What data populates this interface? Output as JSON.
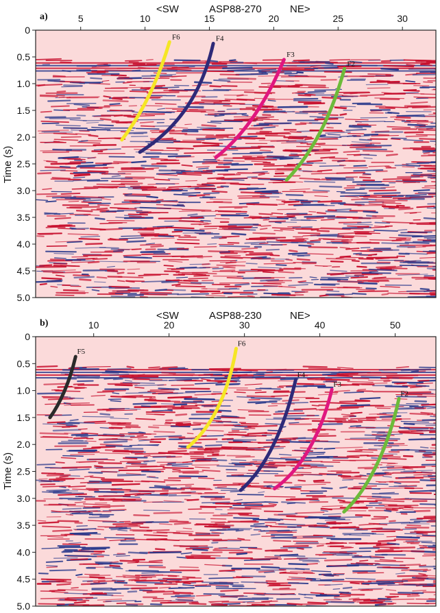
{
  "figure": {
    "panels": [
      {
        "id": "a",
        "tag": "a)",
        "title": "ASP88-270",
        "direction_left": "<SW",
        "direction_right": "NE>",
        "x_ticks": [
          {
            "value": 5,
            "label": "5"
          },
          {
            "value": 10,
            "label": "10"
          },
          {
            "value": 15,
            "label": "15"
          },
          {
            "value": 20,
            "label": "20"
          },
          {
            "value": 25,
            "label": "25"
          },
          {
            "value": 30,
            "label": "30"
          }
        ],
        "x_range": [
          1.5,
          32.6
        ],
        "y_label": "Time (s)",
        "y_range": [
          0,
          5
        ],
        "y_ticks": [
          {
            "value": 0,
            "label": "0"
          },
          {
            "value": 0.5,
            "label": "0.5"
          },
          {
            "value": 1.0,
            "label": "1.0"
          },
          {
            "value": 1.5,
            "label": "1.5"
          },
          {
            "value": 2.0,
            "label": "2.0"
          },
          {
            "value": 2.5,
            "label": "2.5"
          },
          {
            "value": 3.0,
            "label": "3.0"
          },
          {
            "value": 3.5,
            "label": "3.5"
          },
          {
            "value": 4.0,
            "label": "4.0"
          },
          {
            "value": 4.5,
            "label": "4.5"
          },
          {
            "value": 5.0,
            "label": "5.0"
          }
        ],
        "faults": [
          {
            "label": "F6",
            "color": "#f5e625",
            "points": [
              [
                11.9,
                0.22
              ],
              [
                11.0,
                0.95
              ],
              [
                9.8,
                1.55
              ],
              [
                8.2,
                2.05
              ]
            ],
            "label_at": [
              12.1,
              0.12
            ]
          },
          {
            "label": "F4",
            "color": "#2e2a78",
            "points": [
              [
                15.3,
                0.25
              ],
              [
                14.5,
                1.1
              ],
              [
                12.8,
                1.8
              ],
              [
                9.6,
                2.28
              ]
            ],
            "label_at": [
              15.5,
              0.15
            ]
          },
          {
            "label": "F3",
            "color": "#e0177f",
            "points": [
              [
                20.8,
                0.55
              ],
              [
                19.5,
                1.3
              ],
              [
                17.8,
                1.95
              ],
              [
                15.5,
                2.38
              ]
            ],
            "label_at": [
              21.0,
              0.45
            ]
          },
          {
            "label": "F2",
            "color": "#6dbb3a",
            "points": [
              [
                25.5,
                0.72
              ],
              [
                24.6,
                1.5
              ],
              [
                23.2,
                2.25
              ],
              [
                21.0,
                2.8
              ]
            ],
            "label_at": [
              25.7,
              0.62
            ]
          }
        ]
      },
      {
        "id": "b",
        "tag": "b)",
        "title": "ASP88-230",
        "direction_left": "<SW",
        "direction_right": "NE>",
        "x_ticks": [
          {
            "value": 10,
            "label": "10"
          },
          {
            "value": 20,
            "label": "20"
          },
          {
            "value": 30,
            "label": "30"
          },
          {
            "value": 40,
            "label": "40"
          },
          {
            "value": 50,
            "label": "50"
          }
        ],
        "x_range": [
          2.3,
          55.4
        ],
        "y_label": "Time (s)",
        "y_range": [
          0,
          5
        ],
        "y_ticks": [
          {
            "value": 0,
            "label": "0"
          },
          {
            "value": 0.5,
            "label": "0.5"
          },
          {
            "value": 1.0,
            "label": "1.0"
          },
          {
            "value": 1.5,
            "label": "1.5"
          },
          {
            "value": 2.0,
            "label": "2.0"
          },
          {
            "value": 2.5,
            "label": "2.5"
          },
          {
            "value": 3.0,
            "label": "3.0"
          },
          {
            "value": 3.5,
            "label": "3.5"
          },
          {
            "value": 4.0,
            "label": "4.0"
          },
          {
            "value": 4.5,
            "label": "4.5"
          },
          {
            "value": 5.0,
            "label": "5.0"
          }
        ],
        "faults": [
          {
            "label": "F5",
            "color": "#2a2a2a",
            "points": [
              [
                7.6,
                0.37
              ],
              [
                6.8,
                0.85
              ],
              [
                5.5,
                1.25
              ],
              [
                4.2,
                1.5
              ]
            ],
            "label_at": [
              7.8,
              0.27
            ]
          },
          {
            "label": "F6",
            "color": "#f5e625",
            "points": [
              [
                28.9,
                0.22
              ],
              [
                27.8,
                1.1
              ],
              [
                25.5,
                1.7
              ],
              [
                22.5,
                2.05
              ]
            ],
            "label_at": [
              29.1,
              0.12
            ]
          },
          {
            "label": "F4",
            "color": "#2e2a78",
            "points": [
              [
                36.8,
                0.8
              ],
              [
                35.3,
                1.7
              ],
              [
                32.8,
                2.45
              ],
              [
                29.5,
                2.85
              ]
            ],
            "label_at": [
              37.0,
              0.7
            ]
          },
          {
            "label": "F3",
            "color": "#e0177f",
            "points": [
              [
                41.6,
                0.98
              ],
              [
                40.0,
                1.9
              ],
              [
                37.2,
                2.5
              ],
              [
                34.0,
                2.82
              ]
            ],
            "label_at": [
              41.8,
              0.88
            ]
          },
          {
            "label": "F2",
            "color": "#6dbb3a",
            "points": [
              [
                50.5,
                1.15
              ],
              [
                49.0,
                2.1
              ],
              [
                46.3,
                2.85
              ],
              [
                43.2,
                3.25
              ]
            ],
            "label_at": [
              50.7,
              1.05
            ]
          }
        ]
      }
    ]
  },
  "colors": {
    "background": "#fbdada",
    "event_red": "#c8102e",
    "event_blue": "#2b3a8c",
    "frame": "#222222"
  }
}
